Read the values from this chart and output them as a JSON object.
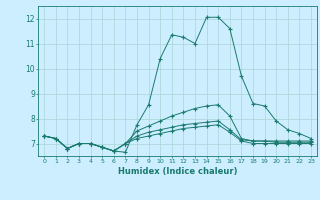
{
  "xlabel": "Humidex (Indice chaleur)",
  "bg_color": "#cceeff",
  "line_color": "#1a7a6e",
  "grid_color": "#aad4d4",
  "xlim": [
    -0.5,
    23.5
  ],
  "ylim": [
    6.5,
    12.5
  ],
  "xticks": [
    0,
    1,
    2,
    3,
    4,
    5,
    6,
    7,
    8,
    9,
    10,
    11,
    12,
    13,
    14,
    15,
    16,
    17,
    18,
    19,
    20,
    21,
    22,
    23
  ],
  "yticks": [
    7,
    8,
    9,
    10,
    11,
    12
  ],
  "series": [
    {
      "x": [
        0,
        1,
        2,
        3,
        4,
        5,
        6,
        7,
        8,
        9,
        10,
        11,
        12,
        13,
        14,
        15,
        16,
        17,
        18,
        19,
        20,
        21,
        22,
        23
      ],
      "y": [
        7.3,
        7.2,
        6.8,
        7.0,
        7.0,
        6.85,
        6.7,
        6.65,
        7.75,
        8.55,
        10.4,
        11.35,
        11.25,
        11.0,
        12.05,
        12.05,
        11.6,
        9.7,
        8.6,
        8.5,
        7.9,
        7.55,
        7.4,
        7.2
      ]
    },
    {
      "x": [
        0,
        1,
        2,
        3,
        4,
        5,
        6,
        7,
        8,
        9,
        10,
        11,
        12,
        13,
        14,
        15,
        16,
        17,
        18,
        19,
        20,
        21,
        22,
        23
      ],
      "y": [
        7.3,
        7.2,
        6.8,
        7.0,
        7.0,
        6.85,
        6.7,
        7.0,
        7.5,
        7.7,
        7.9,
        8.1,
        8.25,
        8.4,
        8.5,
        8.55,
        8.1,
        7.2,
        7.1,
        7.1,
        7.1,
        7.1,
        7.1,
        7.1
      ]
    },
    {
      "x": [
        0,
        1,
        2,
        3,
        4,
        5,
        6,
        7,
        8,
        9,
        10,
        11,
        12,
        13,
        14,
        15,
        16,
        17,
        18,
        19,
        20,
        21,
        22,
        23
      ],
      "y": [
        7.3,
        7.2,
        6.8,
        7.0,
        7.0,
        6.85,
        6.7,
        7.0,
        7.3,
        7.45,
        7.55,
        7.65,
        7.75,
        7.8,
        7.85,
        7.9,
        7.55,
        7.15,
        7.1,
        7.1,
        7.05,
        7.05,
        7.05,
        7.05
      ]
    },
    {
      "x": [
        0,
        1,
        2,
        3,
        4,
        5,
        6,
        7,
        8,
        9,
        10,
        11,
        12,
        13,
        14,
        15,
        16,
        17,
        18,
        19,
        20,
        21,
        22,
        23
      ],
      "y": [
        7.3,
        7.2,
        6.8,
        7.0,
        7.0,
        6.85,
        6.7,
        7.0,
        7.2,
        7.3,
        7.4,
        7.5,
        7.6,
        7.65,
        7.7,
        7.75,
        7.45,
        7.1,
        7.0,
        7.0,
        7.0,
        7.0,
        7.0,
        7.0
      ]
    }
  ]
}
